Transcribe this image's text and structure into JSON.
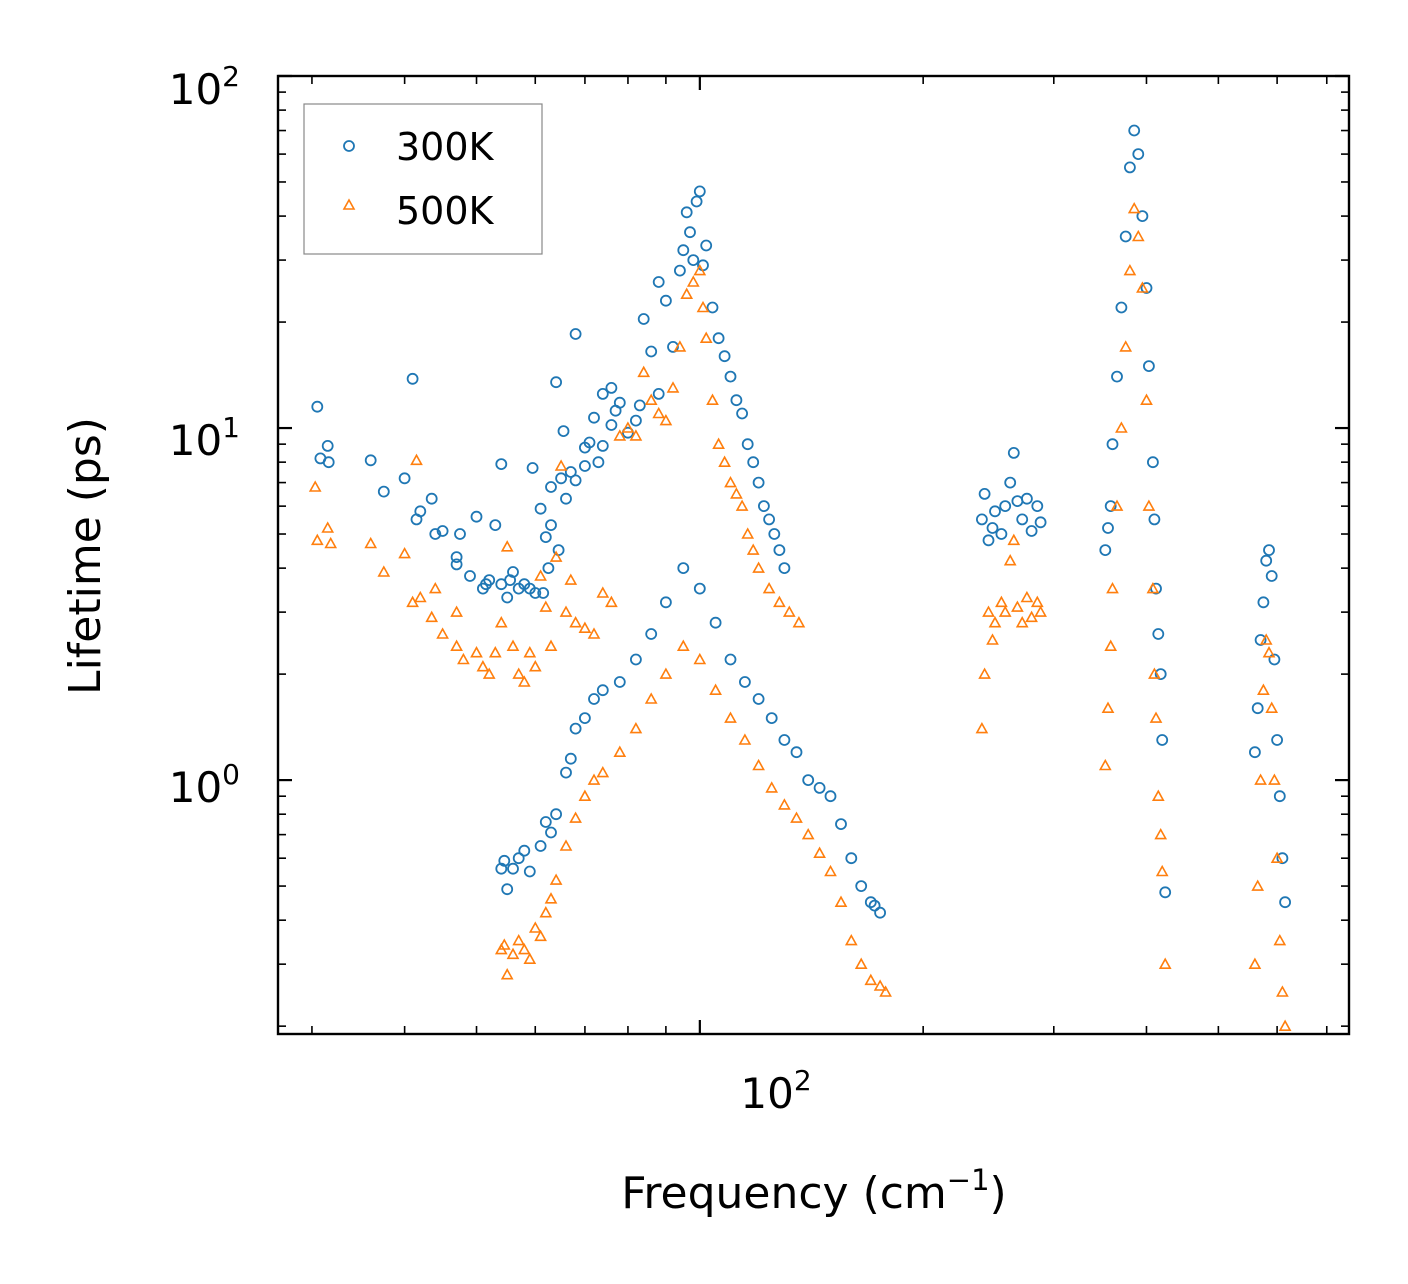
{
  "chart_data": {
    "type": "scatter",
    "xscale": "log",
    "yscale": "log",
    "xlim": [
      27,
      750
    ],
    "ylim": [
      0.19,
      100
    ],
    "xlabel": "Frequency (cm",
    "xlabel_sup": "−1",
    "xlabel_close": ")",
    "ylabel": "Lifetime (ps)",
    "xticks": [
      {
        "value": 100,
        "base": "10",
        "exp": "2"
      }
    ],
    "yticks": [
      {
        "value": 1,
        "base": "10",
        "exp": "0"
      },
      {
        "value": 10,
        "base": "10",
        "exp": "1"
      },
      {
        "value": 100,
        "base": "10",
        "exp": "2"
      }
    ],
    "legend_position": "top-left",
    "series": [
      {
        "name": "300K",
        "color": "#1f77b4",
        "marker": "circle",
        "points": [
          [
            30.5,
            11.5
          ],
          [
            30.8,
            8.2
          ],
          [
            31.5,
            8.9
          ],
          [
            31.6,
            8.0
          ],
          [
            36,
            8.1
          ],
          [
            37.5,
            6.6
          ],
          [
            40,
            7.2
          ],
          [
            41,
            13.8
          ],
          [
            41.5,
            5.5
          ],
          [
            42,
            5.8
          ],
          [
            43.5,
            6.3
          ],
          [
            44,
            5.0
          ],
          [
            45,
            5.1
          ],
          [
            47,
            4.3
          ],
          [
            47,
            4.1
          ],
          [
            47.5,
            5.0
          ],
          [
            49,
            3.8
          ],
          [
            50,
            5.6
          ],
          [
            51,
            3.5
          ],
          [
            51.5,
            3.6
          ],
          [
            52,
            3.7
          ],
          [
            53,
            5.3
          ],
          [
            54,
            3.6
          ],
          [
            54,
            7.9
          ],
          [
            55,
            3.3
          ],
          [
            55.5,
            3.7
          ],
          [
            56,
            3.9
          ],
          [
            57,
            3.5
          ],
          [
            58,
            3.6
          ],
          [
            59,
            3.5
          ],
          [
            59.5,
            7.7
          ],
          [
            60,
            3.4
          ],
          [
            61,
            5.9
          ],
          [
            61.5,
            3.4
          ],
          [
            62,
            4.9
          ],
          [
            62.5,
            4.0
          ],
          [
            63,
            5.3
          ],
          [
            63,
            6.8
          ],
          [
            64,
            13.5
          ],
          [
            64.5,
            4.5
          ],
          [
            65,
            7.2
          ],
          [
            65.5,
            9.8
          ],
          [
            66,
            6.3
          ],
          [
            67,
            7.5
          ],
          [
            68,
            7.1
          ],
          [
            68,
            18.5
          ],
          [
            70,
            7.8
          ],
          [
            70,
            8.8
          ],
          [
            71,
            9.1
          ],
          [
            72,
            10.7
          ],
          [
            73,
            8.0
          ],
          [
            74,
            8.9
          ],
          [
            74,
            12.5
          ],
          [
            76,
            10.2
          ],
          [
            76,
            13.0
          ],
          [
            77,
            11.2
          ],
          [
            78,
            11.8
          ],
          [
            80,
            9.7
          ],
          [
            82,
            10.5
          ],
          [
            83,
            11.6
          ],
          [
            84,
            20.4
          ],
          [
            86,
            16.5
          ],
          [
            88,
            12.5
          ],
          [
            88,
            26.0
          ],
          [
            90,
            23.0
          ],
          [
            92,
            17.0
          ],
          [
            94,
            28.0
          ],
          [
            95,
            32.0
          ],
          [
            96,
            41.0
          ],
          [
            97,
            36.0
          ],
          [
            98,
            30.0
          ],
          [
            99,
            44.0
          ],
          [
            100,
            47.0
          ],
          [
            101,
            29.0
          ],
          [
            102,
            33.0
          ],
          [
            104,
            22.0
          ],
          [
            106,
            18.0
          ],
          [
            108,
            16.0
          ],
          [
            110,
            14.0
          ],
          [
            112,
            12.0
          ],
          [
            114,
            11.0
          ],
          [
            116,
            9.0
          ],
          [
            118,
            8.0
          ],
          [
            120,
            7.0
          ],
          [
            122,
            6.0
          ],
          [
            124,
            5.5
          ],
          [
            126,
            5.0
          ],
          [
            128,
            4.5
          ],
          [
            130,
            4.0
          ],
          [
            54,
            0.56
          ],
          [
            54.5,
            0.59
          ],
          [
            55,
            0.49
          ],
          [
            56,
            0.56
          ],
          [
            57,
            0.6
          ],
          [
            58,
            0.63
          ],
          [
            59,
            0.55
          ],
          [
            61,
            0.65
          ],
          [
            62,
            0.76
          ],
          [
            63,
            0.71
          ],
          [
            64,
            0.8
          ],
          [
            66,
            1.05
          ],
          [
            67,
            1.15
          ],
          [
            68,
            1.4
          ],
          [
            70,
            1.5
          ],
          [
            72,
            1.7
          ],
          [
            74,
            1.8
          ],
          [
            78,
            1.9
          ],
          [
            82,
            2.2
          ],
          [
            86,
            2.6
          ],
          [
            90,
            3.2
          ],
          [
            95,
            4.0
          ],
          [
            100,
            3.5
          ],
          [
            105,
            2.8
          ],
          [
            110,
            2.2
          ],
          [
            115,
            1.9
          ],
          [
            120,
            1.7
          ],
          [
            125,
            1.5
          ],
          [
            130,
            1.3
          ],
          [
            135,
            1.2
          ],
          [
            140,
            1.0
          ],
          [
            145,
            0.95
          ],
          [
            150,
            0.9
          ],
          [
            155,
            0.75
          ],
          [
            160,
            0.6
          ],
          [
            165,
            0.5
          ],
          [
            170,
            0.45
          ],
          [
            172,
            0.44
          ],
          [
            175,
            0.42
          ],
          [
            240,
            5.5
          ],
          [
            242,
            6.5
          ],
          [
            245,
            4.8
          ],
          [
            248,
            5.2
          ],
          [
            250,
            5.8
          ],
          [
            255,
            5.0
          ],
          [
            258,
            6.0
          ],
          [
            262,
            7.0
          ],
          [
            265,
            8.5
          ],
          [
            268,
            6.2
          ],
          [
            272,
            5.5
          ],
          [
            276,
            6.3
          ],
          [
            280,
            5.1
          ],
          [
            285,
            6.0
          ],
          [
            288,
            5.4
          ],
          [
            352,
            4.5
          ],
          [
            355,
            5.2
          ],
          [
            358,
            6.0
          ],
          [
            360,
            9.0
          ],
          [
            365,
            14.0
          ],
          [
            370,
            22.0
          ],
          [
            375,
            35.0
          ],
          [
            380,
            55.0
          ],
          [
            385,
            70.0
          ],
          [
            390,
            60.0
          ],
          [
            395,
            40.0
          ],
          [
            400,
            25.0
          ],
          [
            403,
            15.0
          ],
          [
            408,
            8.0
          ],
          [
            410,
            5.5
          ],
          [
            412,
            3.5
          ],
          [
            415,
            2.6
          ],
          [
            418,
            2.0
          ],
          [
            420,
            1.3
          ],
          [
            424,
            0.48
          ],
          [
            560,
            1.2
          ],
          [
            565,
            1.6
          ],
          [
            570,
            2.5
          ],
          [
            575,
            3.2
          ],
          [
            580,
            4.2
          ],
          [
            585,
            4.5
          ],
          [
            590,
            3.8
          ],
          [
            595,
            2.2
          ],
          [
            600,
            1.3
          ],
          [
            605,
            0.9
          ],
          [
            610,
            0.6
          ],
          [
            615,
            0.45
          ]
        ]
      },
      {
        "name": "500K",
        "color": "#ff7f0e",
        "marker": "triangle",
        "points": [
          [
            30.3,
            6.8
          ],
          [
            30.5,
            4.8
          ],
          [
            31.5,
            5.2
          ],
          [
            31.8,
            4.7
          ],
          [
            36,
            4.7
          ],
          [
            37.5,
            3.9
          ],
          [
            40,
            4.4
          ],
          [
            41,
            3.2
          ],
          [
            41.5,
            8.1
          ],
          [
            42,
            3.3
          ],
          [
            43.5,
            2.9
          ],
          [
            44,
            3.5
          ],
          [
            45,
            2.6
          ],
          [
            47,
            3.0
          ],
          [
            47,
            2.4
          ],
          [
            48,
            2.2
          ],
          [
            50,
            2.3
          ],
          [
            51,
            2.1
          ],
          [
            52,
            2.0
          ],
          [
            53,
            2.3
          ],
          [
            54,
            2.8
          ],
          [
            55,
            4.6
          ],
          [
            56,
            2.4
          ],
          [
            57,
            2.0
          ],
          [
            58,
            1.9
          ],
          [
            59,
            2.3
          ],
          [
            60,
            2.1
          ],
          [
            61,
            3.8
          ],
          [
            62,
            3.1
          ],
          [
            63,
            2.4
          ],
          [
            64,
            4.3
          ],
          [
            65,
            7.8
          ],
          [
            66,
            3.0
          ],
          [
            67,
            3.7
          ],
          [
            68,
            2.8
          ],
          [
            70,
            2.7
          ],
          [
            72,
            2.6
          ],
          [
            74,
            3.4
          ],
          [
            76,
            3.2
          ],
          [
            78,
            9.5
          ],
          [
            80,
            10.0
          ],
          [
            82,
            9.5
          ],
          [
            84,
            14.4
          ],
          [
            86,
            12.0
          ],
          [
            88,
            11.0
          ],
          [
            90,
            10.5
          ],
          [
            92,
            13.0
          ],
          [
            94,
            17.0
          ],
          [
            96,
            24.0
          ],
          [
            98,
            26.0
          ],
          [
            100,
            28.0
          ],
          [
            101,
            22.0
          ],
          [
            102,
            18.0
          ],
          [
            104,
            12.0
          ],
          [
            106,
            9.0
          ],
          [
            108,
            8.0
          ],
          [
            110,
            7.0
          ],
          [
            112,
            6.5
          ],
          [
            114,
            6.0
          ],
          [
            116,
            5.0
          ],
          [
            118,
            4.5
          ],
          [
            120,
            4.0
          ],
          [
            124,
            3.5
          ],
          [
            128,
            3.2
          ],
          [
            132,
            3.0
          ],
          [
            136,
            2.8
          ],
          [
            54,
            0.33
          ],
          [
            54.5,
            0.34
          ],
          [
            55,
            0.28
          ],
          [
            56,
            0.32
          ],
          [
            57,
            0.35
          ],
          [
            58,
            0.33
          ],
          [
            59,
            0.31
          ],
          [
            60,
            0.38
          ],
          [
            61,
            0.36
          ],
          [
            62,
            0.42
          ],
          [
            63,
            0.46
          ],
          [
            64,
            0.52
          ],
          [
            66,
            0.65
          ],
          [
            68,
            0.78
          ],
          [
            70,
            0.9
          ],
          [
            72,
            1.0
          ],
          [
            74,
            1.05
          ],
          [
            78,
            1.2
          ],
          [
            82,
            1.4
          ],
          [
            86,
            1.7
          ],
          [
            90,
            2.0
          ],
          [
            95,
            2.4
          ],
          [
            100,
            2.2
          ],
          [
            105,
            1.8
          ],
          [
            110,
            1.5
          ],
          [
            115,
            1.3
          ],
          [
            120,
            1.1
          ],
          [
            125,
            0.95
          ],
          [
            130,
            0.85
          ],
          [
            135,
            0.78
          ],
          [
            140,
            0.7
          ],
          [
            145,
            0.62
          ],
          [
            150,
            0.55
          ],
          [
            155,
            0.45
          ],
          [
            160,
            0.35
          ],
          [
            165,
            0.3
          ],
          [
            170,
            0.27
          ],
          [
            175,
            0.26
          ],
          [
            178,
            0.25
          ],
          [
            240,
            1.4
          ],
          [
            242,
            2.0
          ],
          [
            245,
            3.0
          ],
          [
            248,
            2.5
          ],
          [
            250,
            2.8
          ],
          [
            255,
            3.2
          ],
          [
            258,
            3.0
          ],
          [
            262,
            4.2
          ],
          [
            265,
            4.8
          ],
          [
            268,
            3.1
          ],
          [
            272,
            2.8
          ],
          [
            276,
            3.3
          ],
          [
            280,
            2.9
          ],
          [
            285,
            3.2
          ],
          [
            288,
            3.0
          ],
          [
            352,
            1.1
          ],
          [
            355,
            1.6
          ],
          [
            358,
            2.4
          ],
          [
            360,
            3.5
          ],
          [
            365,
            6.0
          ],
          [
            370,
            10.0
          ],
          [
            375,
            17.0
          ],
          [
            380,
            28.0
          ],
          [
            385,
            42.0
          ],
          [
            390,
            35.0
          ],
          [
            395,
            25.0
          ],
          [
            400,
            12.0
          ],
          [
            403,
            6.0
          ],
          [
            408,
            3.5
          ],
          [
            410,
            2.0
          ],
          [
            412,
            1.5
          ],
          [
            415,
            0.9
          ],
          [
            418,
            0.7
          ],
          [
            420,
            0.55
          ],
          [
            424,
            0.3
          ],
          [
            560,
            0.3
          ],
          [
            565,
            0.5
          ],
          [
            570,
            1.0
          ],
          [
            575,
            1.8
          ],
          [
            580,
            2.5
          ],
          [
            585,
            2.3
          ],
          [
            590,
            1.6
          ],
          [
            595,
            1.0
          ],
          [
            600,
            0.6
          ],
          [
            605,
            0.35
          ],
          [
            610,
            0.25
          ],
          [
            615,
            0.2
          ]
        ]
      }
    ]
  }
}
